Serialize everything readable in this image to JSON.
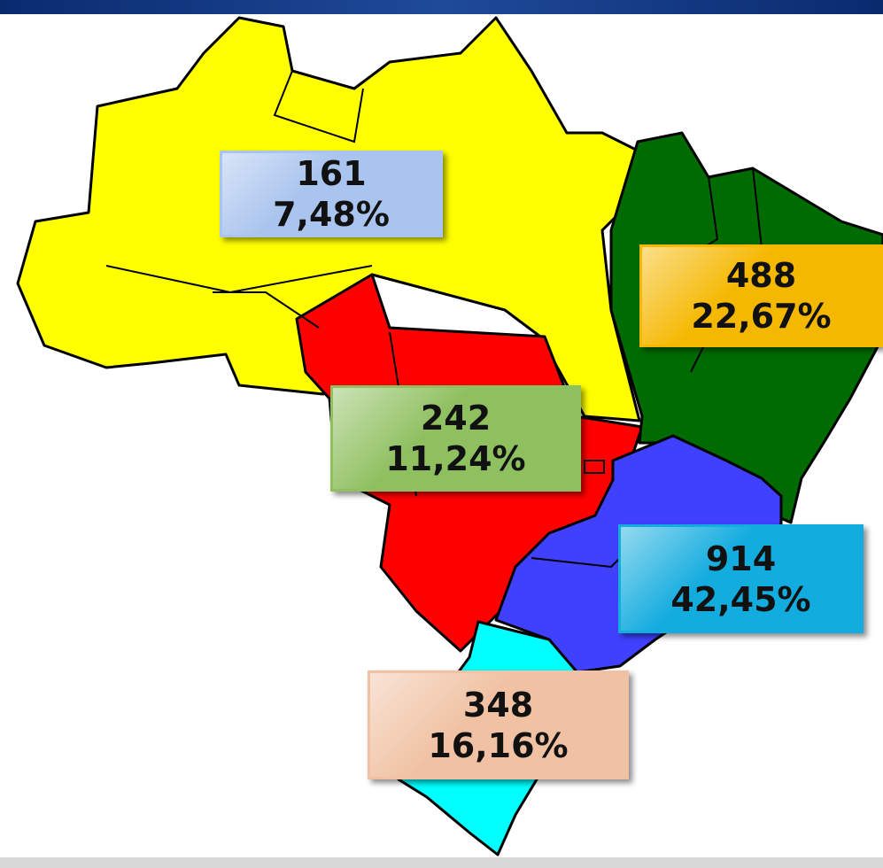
{
  "regions": [
    {
      "count": "161",
      "share": "7,48%",
      "color": "#ffff00",
      "box_color": "#a9c4ee"
    },
    {
      "count": "488",
      "share": "22,67%",
      "color": "#006b00",
      "box_color": "#f5b800"
    },
    {
      "count": "242",
      "share": "11,24%",
      "color": "#ff0000",
      "box_color": "#8fc060"
    },
    {
      "count": "914",
      "share": "42,45%",
      "color": "#4040ff",
      "box_color": "#12acdf"
    },
    {
      "count": "348",
      "share": "16,16%",
      "color": "#00ffff",
      "box_color": "#f0c2a3"
    }
  ]
}
